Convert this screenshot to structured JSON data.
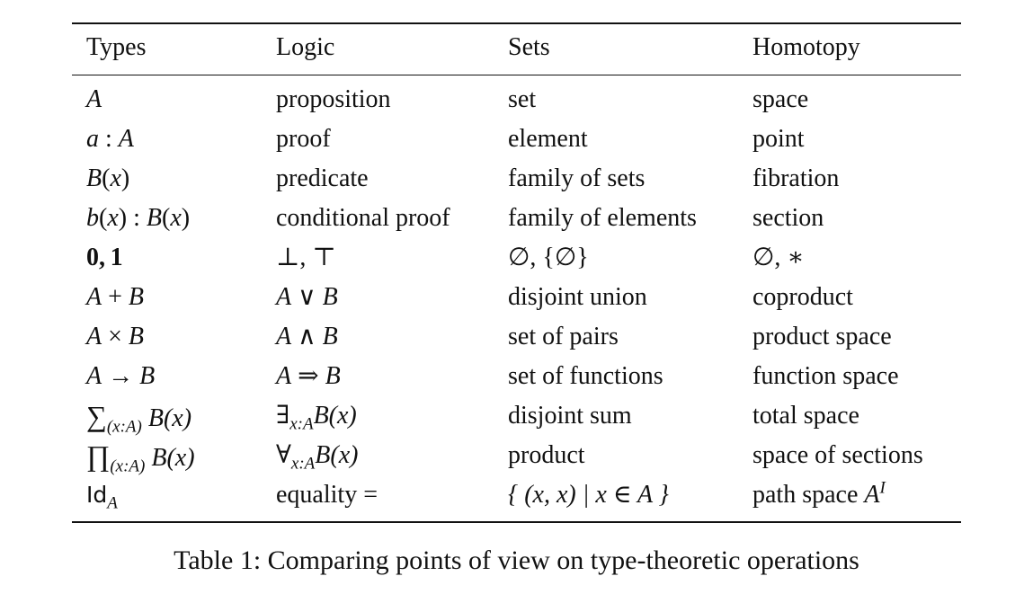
{
  "table": {
    "headers": [
      "Types",
      "Logic",
      "Sets",
      "Homotopy"
    ],
    "rows": [
      [
        "A",
        "proposition",
        "set",
        "space"
      ],
      [
        "a : A",
        "proof",
        "element",
        "point"
      ],
      [
        "B(x)",
        "predicate",
        "family of sets",
        "fibration"
      ],
      [
        "b(x) : B(x)",
        "conditional proof",
        "family of elements",
        "section"
      ],
      [
        "0, 1",
        "⊥, ⊤",
        "∅, {∅}",
        "∅, ∗"
      ],
      [
        "A + B",
        "A ∨ B",
        "disjoint union",
        "coproduct"
      ],
      [
        "A × B",
        "A ∧ B",
        "set of pairs",
        "product space"
      ],
      [
        "A → B",
        "A ⇒ B",
        "set of functions",
        "function space"
      ],
      [
        "∑(x:A) B(x)",
        "∃x:A B(x)",
        "disjoint sum",
        "total space"
      ],
      [
        "∏(x:A) B(x)",
        "∀x:A B(x)",
        "product",
        "space of sections"
      ],
      [
        "IdA",
        "equality =",
        "{ (x, x) | x ∈ A }",
        "path space A^I"
      ]
    ]
  },
  "math": {
    "r0": {
      "a": "A"
    },
    "r1": {
      "a": "a",
      "colon": " : ",
      "b": "A"
    },
    "r2": {
      "f": "B",
      "open": "(",
      "x": "x",
      "close": ")"
    },
    "r3": {
      "f": "b",
      "open": "(",
      "x": "x",
      "close1": ")",
      "colon": " : ",
      "g": "B",
      "open2": "(",
      "x2": "x",
      "close2": ")"
    },
    "r4": {
      "types": "0, 1",
      "logic": "⊥, ⊤",
      "sets": "∅, {∅}",
      "homotopy": "∅, ∗"
    },
    "r5": {
      "types_a": "A",
      "types_op": " + ",
      "types_b": "B",
      "logic_a": "A",
      "logic_op": " ∨ ",
      "logic_b": "B"
    },
    "r6": {
      "types_a": "A",
      "types_op": " × ",
      "types_b": "B",
      "logic_a": "A",
      "logic_op": " ∧ ",
      "logic_b": "B"
    },
    "r7": {
      "types_a": "A",
      "types_op": " → ",
      "types_b": "B",
      "logic_a": "A",
      "logic_op": " ⇒ ",
      "logic_b": "B"
    },
    "r8": {
      "sym": "∑",
      "sub": "(x:A)",
      "body": " B(x)",
      "qsym": "∃",
      "qsub": "x:A",
      "qbody": "B(x)"
    },
    "r9": {
      "sym": "∏",
      "sub": "(x:A)",
      "body": " B(x)",
      "qsym": "∀",
      "qsub": "x:A",
      "qbody": "B(x)"
    },
    "r10": {
      "id": "Id",
      "idsub": "A",
      "eq": "equality =",
      "set": "{ (x, x) | x ∈ A }",
      "path": "path space ",
      "pathA": "A",
      "pathsup": "I"
    }
  },
  "caption": "Table 1: Comparing points of view on type-theoretic operations"
}
